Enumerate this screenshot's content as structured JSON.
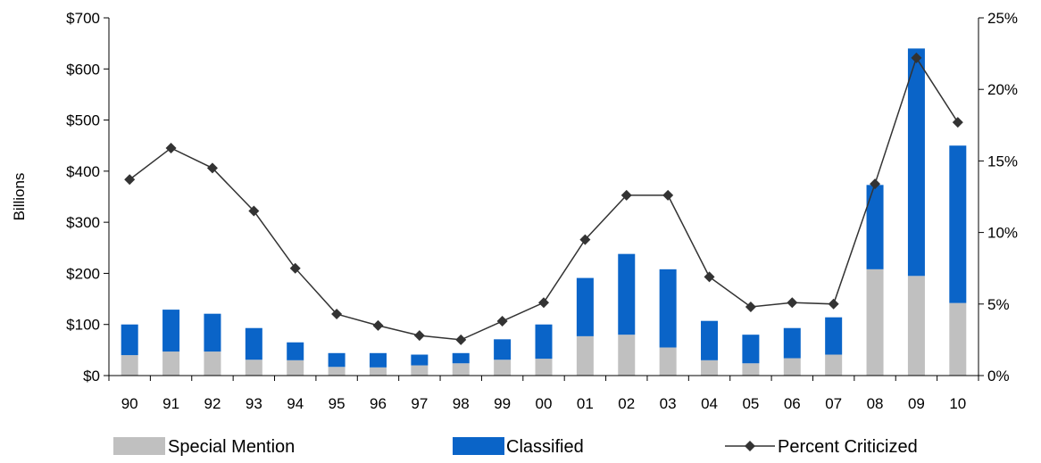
{
  "chart_data": {
    "type": "bar",
    "categories": [
      "90",
      "91",
      "92",
      "93",
      "94",
      "95",
      "96",
      "97",
      "98",
      "99",
      "00",
      "01",
      "02",
      "03",
      "04",
      "05",
      "06",
      "07",
      "08",
      "09",
      "10"
    ],
    "series": [
      {
        "name": "Special Mention",
        "type": "stacked-bar",
        "axis": "left",
        "color": "#c0c0c0",
        "values": [
          40,
          47,
          47,
          31,
          30,
          17,
          16,
          20,
          24,
          31,
          33,
          77,
          80,
          55,
          30,
          24,
          34,
          41,
          208,
          195,
          142
        ]
      },
      {
        "name": "Classified",
        "type": "stacked-bar",
        "axis": "left",
        "color": "#0a64c8",
        "values": [
          60,
          82,
          74,
          62,
          35,
          27,
          28,
          21,
          20,
          40,
          67,
          114,
          158,
          153,
          77,
          56,
          59,
          73,
          165,
          445,
          308
        ]
      },
      {
        "name": "Percent Criticized",
        "type": "line",
        "axis": "right",
        "color": "#333333",
        "marker": "diamond",
        "values": [
          13.7,
          15.9,
          14.5,
          11.5,
          7.5,
          4.3,
          3.5,
          2.8,
          2.5,
          3.8,
          5.1,
          9.5,
          12.6,
          12.6,
          6.9,
          4.8,
          5.1,
          5.0,
          13.4,
          22.2,
          17.7
        ]
      }
    ],
    "ylabel": "Billions",
    "ylim": [
      0,
      700
    ],
    "y_ticks": [
      "$0",
      "$100",
      "$200",
      "$300",
      "$400",
      "$500",
      "$600",
      "$700"
    ],
    "y2lim": [
      0,
      25
    ],
    "y2_ticks": [
      "0%",
      "5%",
      "10%",
      "15%",
      "20%",
      "25%"
    ],
    "grid": false,
    "legend_position": "bottom"
  }
}
